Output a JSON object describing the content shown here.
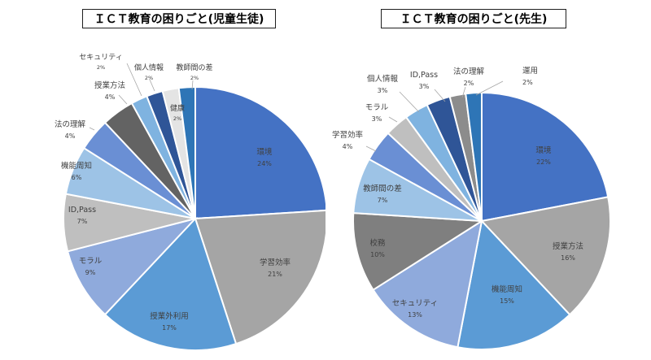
{
  "chart_data": [
    {
      "type": "pie",
      "title": "ＩＣＴ教育の困りごと(児童生徒)",
      "unit": "%",
      "slices": [
        {
          "label": "環境",
          "value": 24,
          "display": "24%",
          "color": "#4472C4"
        },
        {
          "label": "学習効率",
          "value": 21,
          "display": "21%",
          "color": "#A5A5A5"
        },
        {
          "label": "授業外利用",
          "value": 17,
          "display": "17%",
          "color": "#5B9BD5"
        },
        {
          "label": "モラル",
          "value": 9,
          "display": "9%",
          "color": "#8FAADC"
        },
        {
          "label": "ID,Pass",
          "value": 7,
          "display": "7%",
          "color": "#BFBFBF"
        },
        {
          "label": "機能周知",
          "value": 6,
          "display": "6%",
          "color": "#9DC3E6"
        },
        {
          "label": "法の理解",
          "value": 4,
          "display": "4%",
          "color": "#6A8FD4"
        },
        {
          "label": "授業方法",
          "value": 4,
          "display": "4%",
          "color": "#636363"
        },
        {
          "label": "セキュリティ",
          "value": 2,
          "display": "2%",
          "color": "#7FB3E0"
        },
        {
          "label": "個人情報",
          "value": 2,
          "display": "2%",
          "color": "#2F5597"
        },
        {
          "label": "健康",
          "value": 2,
          "display": "2%",
          "color": "#E4E4E4"
        },
        {
          "label": "教師間の差",
          "value": 2,
          "display": "2%",
          "color": "#2E75B6"
        }
      ]
    },
    {
      "type": "pie",
      "title": "ＩＣＴ教育の困りごと(先生)",
      "unit": "%",
      "slices": [
        {
          "label": "環境",
          "value": 22,
          "display": "22%",
          "color": "#4472C4"
        },
        {
          "label": "授業方法",
          "value": 16,
          "display": "16%",
          "color": "#A5A5A5"
        },
        {
          "label": "機能周知",
          "value": 15,
          "display": "15%",
          "color": "#5B9BD5"
        },
        {
          "label": "セキュリティ",
          "value": 13,
          "display": "13%",
          "color": "#8FAADC"
        },
        {
          "label": "校務",
          "value": 10,
          "display": "10%",
          "color": "#7F7F7F"
        },
        {
          "label": "教師間の差",
          "value": 7,
          "display": "7%",
          "color": "#9DC3E6"
        },
        {
          "label": "学習効率",
          "value": 4,
          "display": "4%",
          "color": "#6A8FD4"
        },
        {
          "label": "モラル",
          "value": 3,
          "display": "3%",
          "color": "#BFBFBF"
        },
        {
          "label": "個人情報",
          "value": 3,
          "display": "3%",
          "color": "#7FB3E0"
        },
        {
          "label": "ID,Pass",
          "value": 3,
          "display": "3%",
          "color": "#2F5597"
        },
        {
          "label": "法の理解",
          "value": 2,
          "display": "2%",
          "color": "#8C8C8C"
        },
        {
          "label": "運用",
          "value": 2,
          "display": "2%",
          "color": "#2E75B6"
        }
      ]
    }
  ]
}
